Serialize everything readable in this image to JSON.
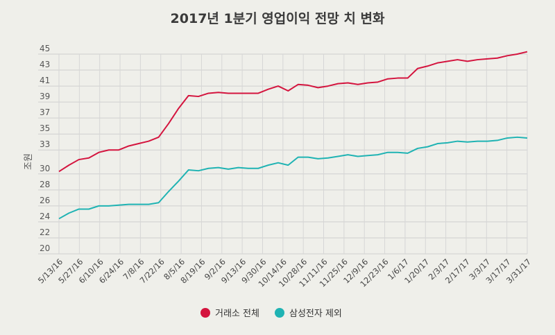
{
  "chart_data": {
    "type": "line",
    "title": "2017년 1분기 영업이익 전망 치 변화",
    "ylabel": "조원",
    "xlabel": "",
    "ylim": [
      20,
      45
    ],
    "yticks": [
      20,
      22,
      24,
      26,
      28,
      30,
      33,
      35,
      37,
      39,
      41,
      43,
      45
    ],
    "grid": true,
    "legend_position": "bottom",
    "x_labels": [
      "5/13/16",
      "5/27/16",
      "6/10/16",
      "6/24/16",
      "7/8/16",
      "7/22/16",
      "8/5/16",
      "8/19/16",
      "9/2/16",
      "9/13/16",
      "9/30/16",
      "10/14/16",
      "10/28/16",
      "11/11/16",
      "11/25/16",
      "12/9/16",
      "12/23/16",
      "1/6/17",
      "1/20/17",
      "2/3/17",
      "2/17/17",
      "3/3/17",
      "3/17/17",
      "3/31/17"
    ],
    "series": [
      {
        "name": "거래소 전체",
        "color": "#d4143e",
        "values": [
          30.3,
          31.1,
          31.8,
          32.0,
          32.7,
          33.0,
          33.0,
          33.5,
          33.8,
          34.1,
          34.6,
          36.3,
          38.2,
          39.8,
          39.7,
          40.1,
          40.2,
          40.1,
          40.1,
          40.1,
          40.1,
          40.6,
          41.0,
          40.4,
          41.2,
          41.1,
          40.8,
          41.0,
          41.3,
          41.4,
          41.2,
          41.4,
          41.5,
          41.9,
          42.0,
          42.0,
          43.2,
          43.5,
          43.9,
          44.1,
          44.3,
          44.1,
          44.3,
          44.4,
          44.5,
          44.8,
          45.0,
          45.3
        ]
      },
      {
        "name": "삼성전자 제외",
        "color": "#1fb3b3",
        "values": [
          24.4,
          25.1,
          25.6,
          25.6,
          26.0,
          26.0,
          26.1,
          26.2,
          26.2,
          26.2,
          26.4,
          27.8,
          29.1,
          30.5,
          30.4,
          30.7,
          30.8,
          30.6,
          30.8,
          30.7,
          30.7,
          31.1,
          31.4,
          31.1,
          32.1,
          32.1,
          31.9,
          32.0,
          32.2,
          32.4,
          32.2,
          32.3,
          32.4,
          32.7,
          32.7,
          32.6,
          33.2,
          33.4,
          33.8,
          33.9,
          34.1,
          34.0,
          34.1,
          34.1,
          34.2,
          34.5,
          34.6,
          34.5
        ]
      }
    ]
  }
}
